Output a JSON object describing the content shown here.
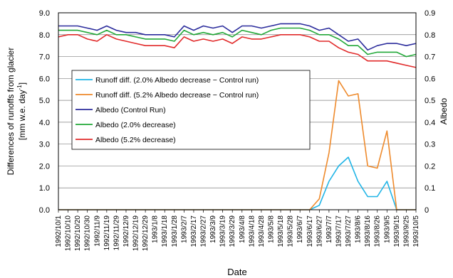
{
  "chart_data": {
    "type": "line",
    "xlabel": "Date",
    "ylabel_left": "Differences of runoffs from glacier",
    "ylabel_left_unit": "[mm w.e. day",
    "ylabel_left_unit_sup": "-1",
    "ylabel_left_unit_close": "]",
    "ylabel_right": "Albedo",
    "ylim_left": [
      0,
      9
    ],
    "ylim_right": [
      0,
      0.9
    ],
    "yticks_left": [
      "0.0",
      "1.0",
      "2.0",
      "3.0",
      "4.0",
      "5.0",
      "6.0",
      "7.0",
      "8.0",
      "9.0"
    ],
    "yticks_right": [
      "0",
      "0.1",
      "0.2",
      "0.3",
      "0.4",
      "0.5",
      "0.6",
      "0.7",
      "0.8",
      "0.9"
    ],
    "x_categories": [
      "1992/10/1",
      "1992/10/10",
      "1992/10/20",
      "1992/10/30",
      "1992/11/9",
      "1992/11/19",
      "1992/11/29",
      "1992/12/9",
      "1992/12/19",
      "1992/12/29",
      "1993/1/8",
      "1993/1/18",
      "1993/1/28",
      "1993/2/7",
      "1993/2/17",
      "1993/2/27",
      "1993/3/9",
      "1993/3/19",
      "1993/3/29",
      "1993/4/8",
      "1993/4/18",
      "1993/4/28",
      "1993/5/8",
      "1993/5/18",
      "1993/5/28",
      "1993/6/7",
      "1993/6/17",
      "1993/6/27",
      "1993/7/7",
      "1993/7/17",
      "1993/7/27",
      "1993/8/6",
      "1993/8/16",
      "1993/8/26",
      "1993/9/5",
      "1993/9/15",
      "1993/9/25",
      "1993/10/5"
    ],
    "grid": true,
    "legend_position": "upper-left",
    "series": [
      {
        "name": "Runoff diff. (2.0% Albedo decrease − Control run)",
        "axis": "left",
        "color": "#1fb4e6",
        "values": [
          0,
          0,
          0,
          0,
          0,
          0,
          0,
          0,
          0,
          0,
          0,
          0,
          0,
          0,
          0,
          0,
          0,
          0,
          0,
          0,
          0,
          0,
          0,
          0,
          0,
          0,
          0,
          0.2,
          1.3,
          2.0,
          2.4,
          1.3,
          0.6,
          0.6,
          1.3,
          0,
          0,
          0
        ]
      },
      {
        "name": "Runoff diff. (5.2% Albedo decrease − Control run)",
        "axis": "left",
        "color": "#ee8a2c",
        "values": [
          0,
          0,
          0,
          0,
          0,
          0,
          0,
          0,
          0,
          0,
          0,
          0,
          0,
          0,
          0,
          0,
          0,
          0,
          0,
          0,
          0,
          0,
          0,
          0,
          0,
          0,
          0,
          0.5,
          2.6,
          5.9,
          5.2,
          5.3,
          2.0,
          1.9,
          3.6,
          0,
          0,
          0
        ]
      },
      {
        "name": "Albedo (Control Run)",
        "axis": "right",
        "color": "#2b2c9c",
        "values": [
          0.84,
          0.84,
          0.84,
          0.83,
          0.82,
          0.84,
          0.82,
          0.81,
          0.81,
          0.8,
          0.8,
          0.8,
          0.79,
          0.84,
          0.82,
          0.84,
          0.83,
          0.84,
          0.81,
          0.84,
          0.84,
          0.83,
          0.84,
          0.85,
          0.85,
          0.85,
          0.84,
          0.82,
          0.83,
          0.8,
          0.77,
          0.78,
          0.73,
          0.75,
          0.76,
          0.76,
          0.75,
          0.76
        ]
      },
      {
        "name": "Albedo (2.0% decrease)",
        "axis": "right",
        "color": "#22a838",
        "values": [
          0.82,
          0.82,
          0.82,
          0.81,
          0.8,
          0.82,
          0.8,
          0.8,
          0.79,
          0.78,
          0.78,
          0.78,
          0.77,
          0.82,
          0.8,
          0.81,
          0.8,
          0.81,
          0.79,
          0.82,
          0.81,
          0.8,
          0.82,
          0.83,
          0.83,
          0.83,
          0.82,
          0.8,
          0.8,
          0.78,
          0.75,
          0.75,
          0.71,
          0.72,
          0.72,
          0.72,
          0.7,
          0.71
        ]
      },
      {
        "name": "Albedo (5.2% decrease)",
        "axis": "right",
        "color": "#e12a2a",
        "values": [
          0.79,
          0.8,
          0.8,
          0.78,
          0.77,
          0.8,
          0.78,
          0.77,
          0.76,
          0.75,
          0.75,
          0.75,
          0.74,
          0.79,
          0.77,
          0.78,
          0.77,
          0.78,
          0.76,
          0.79,
          0.78,
          0.78,
          0.79,
          0.8,
          0.8,
          0.8,
          0.79,
          0.77,
          0.77,
          0.74,
          0.72,
          0.71,
          0.68,
          0.68,
          0.68,
          0.67,
          0.66,
          0.65
        ]
      }
    ]
  }
}
